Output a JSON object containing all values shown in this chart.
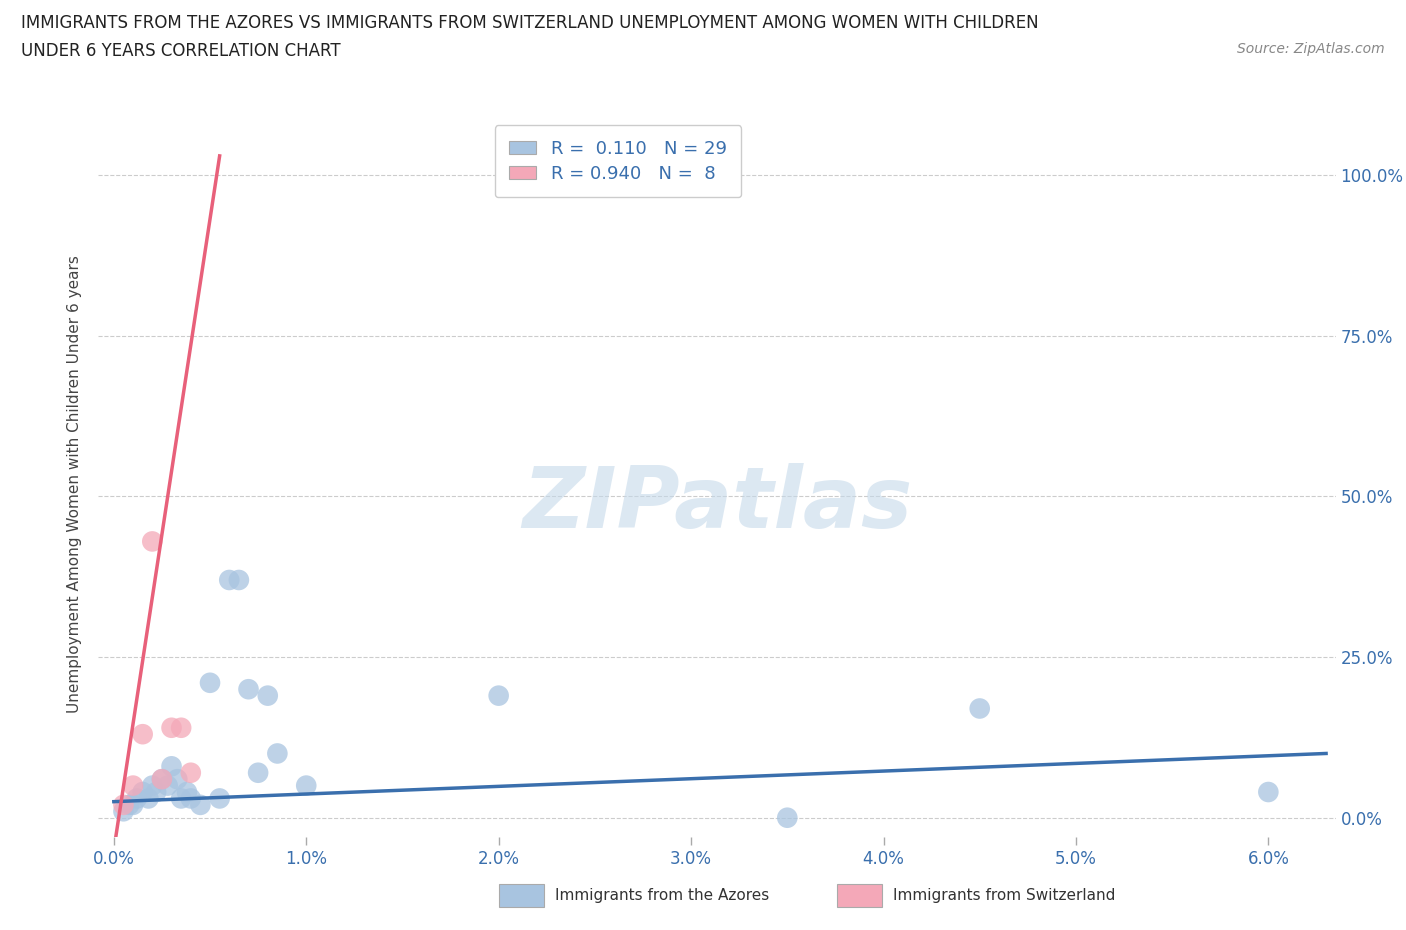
{
  "title_line1": "IMMIGRANTS FROM THE AZORES VS IMMIGRANTS FROM SWITZERLAND UNEMPLOYMENT AMONG WOMEN WITH CHILDREN",
  "title_line2": "UNDER 6 YEARS CORRELATION CHART",
  "source_text": "Source: ZipAtlas.com",
  "ylabel": "Unemployment Among Women with Children Under 6 years",
  "ytick_labels": [
    "0.0%",
    "25.0%",
    "50.0%",
    "75.0%",
    "100.0%"
  ],
  "ytick_vals": [
    0.0,
    25.0,
    50.0,
    75.0,
    100.0
  ],
  "xtick_vals": [
    0.0,
    1.0,
    2.0,
    3.0,
    4.0,
    5.0,
    6.0
  ],
  "xtick_labels": [
    "0.0%",
    "1.0%",
    "2.0%",
    "3.0%",
    "4.0%",
    "5.0%",
    "6.0%"
  ],
  "xlim": [
    -0.08,
    6.35
  ],
  "ylim": [
    -3,
    107
  ],
  "azores_color": "#a8c4e0",
  "switzerland_color": "#f4a8b8",
  "azores_line_color": "#3a6fad",
  "switzerland_line_color": "#e8607a",
  "legend_R_azores": "0.110",
  "legend_N_azores": "29",
  "legend_R_switzerland": "0.940",
  "legend_N_switzerland": "8",
  "watermark": "ZIPatlas",
  "watermark_color": "#c5d9ea",
  "azores_x": [
    0.05,
    0.08,
    0.1,
    0.12,
    0.15,
    0.18,
    0.2,
    0.22,
    0.25,
    0.28,
    0.3,
    0.33,
    0.35,
    0.38,
    0.4,
    0.45,
    0.5,
    0.55,
    0.6,
    0.65,
    0.7,
    0.75,
    0.8,
    0.85,
    1.0,
    2.0,
    3.5,
    4.5,
    6.0
  ],
  "azores_y": [
    1,
    2,
    2,
    3,
    4,
    3,
    5,
    4,
    6,
    5,
    8,
    6,
    3,
    4,
    3,
    2,
    21,
    3,
    37,
    37,
    20,
    7,
    19,
    10,
    5,
    19,
    0,
    17,
    4
  ],
  "switzerland_x": [
    0.05,
    0.1,
    0.15,
    0.2,
    0.25,
    0.3,
    0.35,
    0.4
  ],
  "switzerland_y": [
    2,
    5,
    13,
    43,
    6,
    14,
    14,
    7
  ],
  "azores_trend_x": [
    0.0,
    6.3
  ],
  "azores_trend_y": [
    2.5,
    10.0
  ],
  "switzerland_trend_x": [
    0.0,
    0.55
  ],
  "switzerland_trend_y": [
    -5,
    103
  ]
}
